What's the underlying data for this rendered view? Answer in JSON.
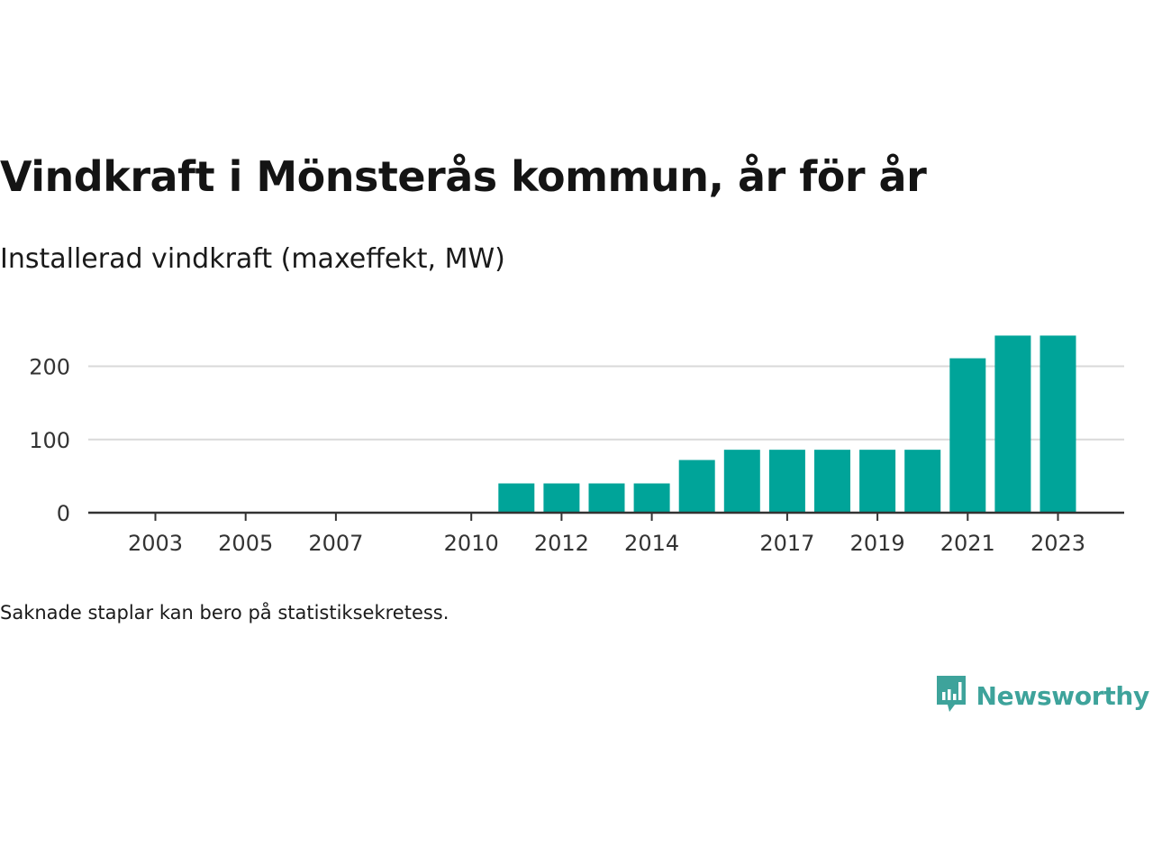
{
  "header": {
    "title": "Vindkraft i Mönsterås kommun, år för år",
    "subtitle": "Installerad vindkraft (maxeffekt, MW)"
  },
  "footer": {
    "note": "Saknade staplar kan bero på statistiksekretess.",
    "brand": "Newsworthy"
  },
  "colors": {
    "bar": "#00a499",
    "grid": "#d9d9d9",
    "axis": "#333333",
    "brand": "#3ea39b"
  },
  "icons": {
    "logo": "bar-chart-speech-bubble-icon"
  },
  "chart_data": {
    "type": "bar",
    "categories": [
      "2003",
      "2004",
      "2005",
      "2006",
      "2007",
      "2008",
      "2009",
      "2010",
      "2011",
      "2012",
      "2013",
      "2014",
      "2015",
      "2016",
      "2017",
      "2018",
      "2019",
      "2020",
      "2021",
      "2022",
      "2023"
    ],
    "values": [
      null,
      null,
      null,
      null,
      null,
      null,
      null,
      null,
      40,
      40,
      40,
      40,
      72,
      86,
      86,
      86,
      86,
      86,
      211,
      242,
      242
    ],
    "x_tick_labels": [
      "2003",
      "2005",
      "2007",
      "2010",
      "2012",
      "2014",
      "2017",
      "2019",
      "2021",
      "2023"
    ],
    "y_ticks": [
      0,
      100,
      200
    ],
    "ylim": [
      0,
      245
    ],
    "grid": true,
    "title": "Vindkraft i Mönsterås kommun, år för år",
    "ylabel": "Installerad vindkraft (maxeffekt, MW)",
    "xlabel": ""
  }
}
